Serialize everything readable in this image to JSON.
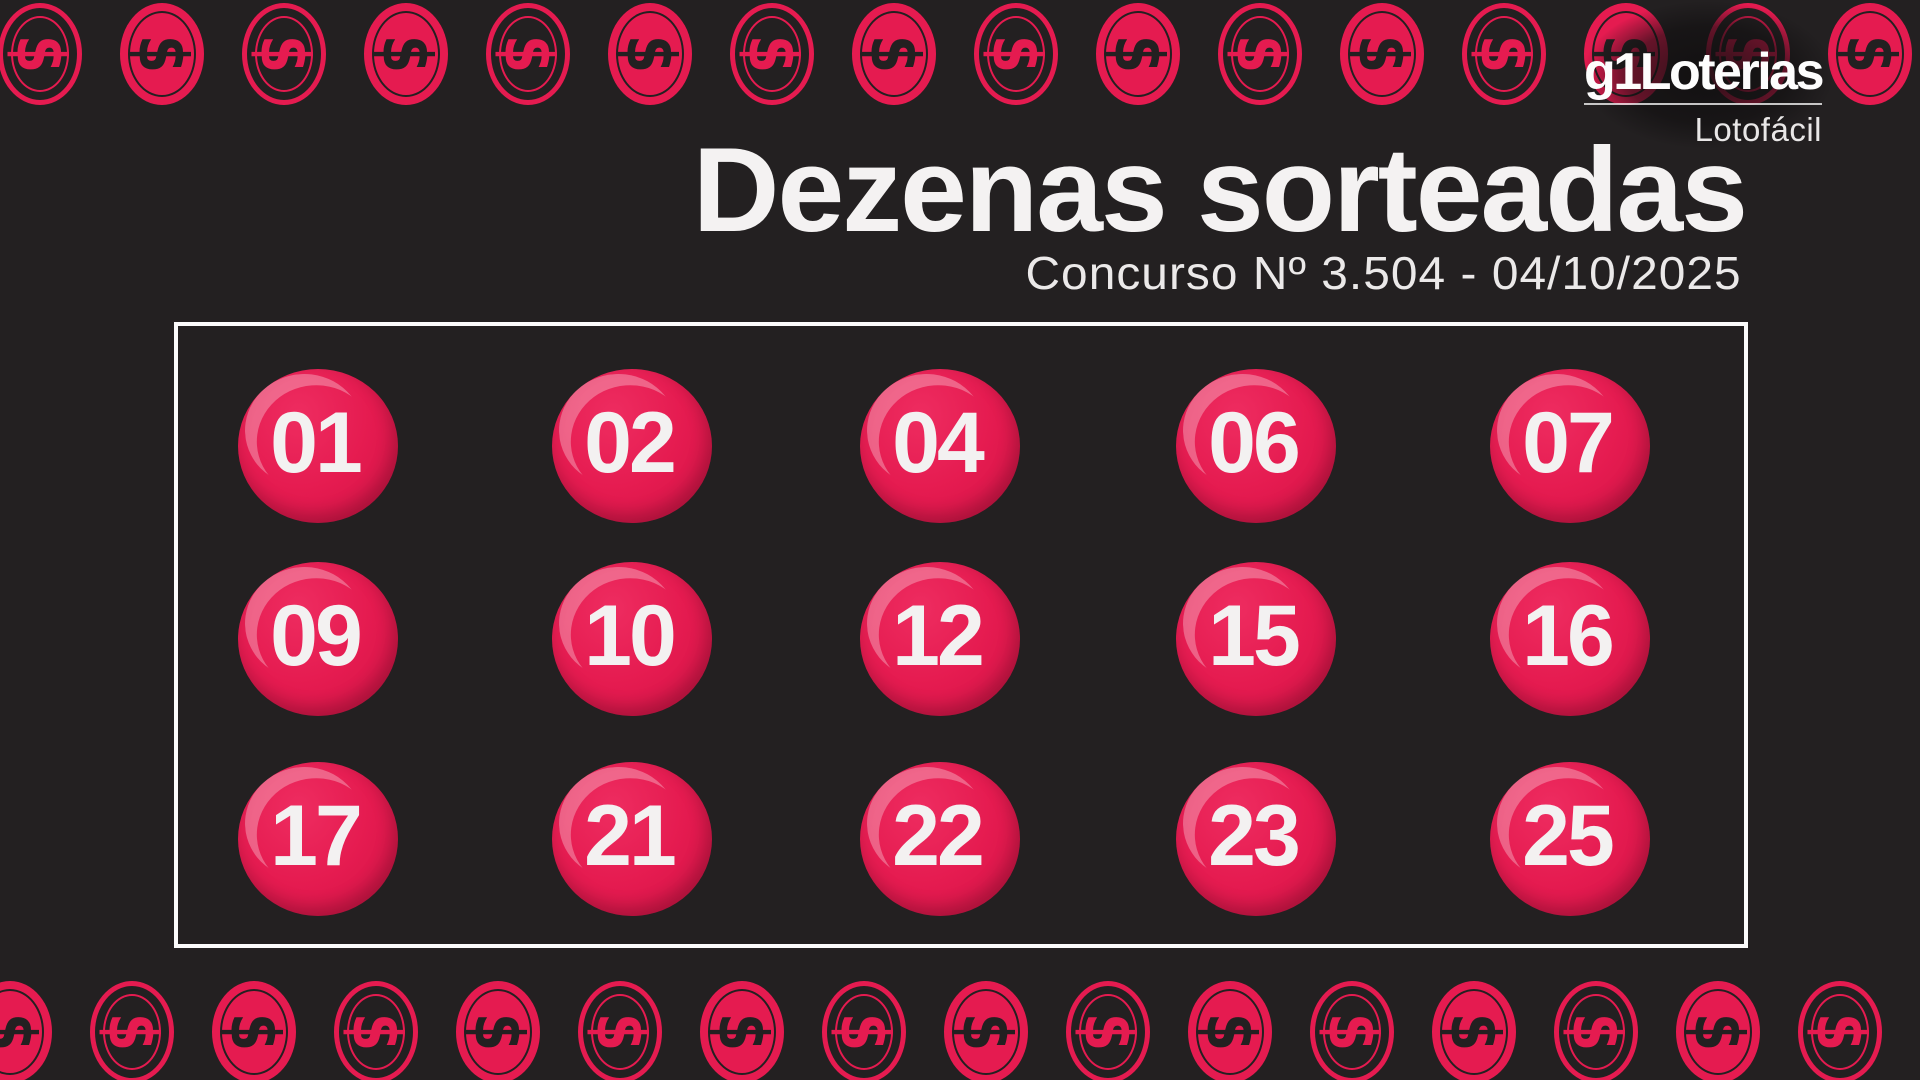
{
  "colors": {
    "background": "#232021",
    "crimson": "#e51b50",
    "crimson_bright": "#ee2c60",
    "crimson_deep": "#d11345",
    "ball_number": "#f3f1f1",
    "title_text": "#f4f2f2",
    "subtitle_text": "#ebe9e9",
    "logo_text": "#fdfdfd",
    "product_text": "#e9e7e7",
    "frame_border": "#fbfbfb"
  },
  "brand": {
    "g1": "g1",
    "loterias": "Loterias",
    "product": "Lotofácil"
  },
  "header": {
    "title": "Dezenas sorteadas",
    "subtitle": "Concurso Nº 3.504 - 04/10/2025"
  },
  "draw": {
    "game": "Lotofácil",
    "contest_number": "3.504",
    "date": "04/10/2025",
    "numbers": [
      "01",
      "02",
      "04",
      "06",
      "07",
      "09",
      "10",
      "12",
      "15",
      "16",
      "17",
      "21",
      "22",
      "23",
      "25"
    ]
  },
  "decor": {
    "coin_symbol": "$",
    "top_coins": [
      "outline",
      "filled",
      "outline",
      "filled",
      "outline",
      "filled",
      "outline",
      "filled",
      "outline",
      "filled",
      "outline",
      "filled",
      "outline",
      "filled",
      "outline",
      "filled"
    ],
    "bottom_coins": [
      "filled",
      "outline",
      "filled",
      "outline",
      "filled",
      "outline",
      "filled",
      "outline",
      "filled",
      "outline",
      "filled",
      "outline",
      "filled",
      "outline",
      "filled",
      "outline"
    ]
  }
}
